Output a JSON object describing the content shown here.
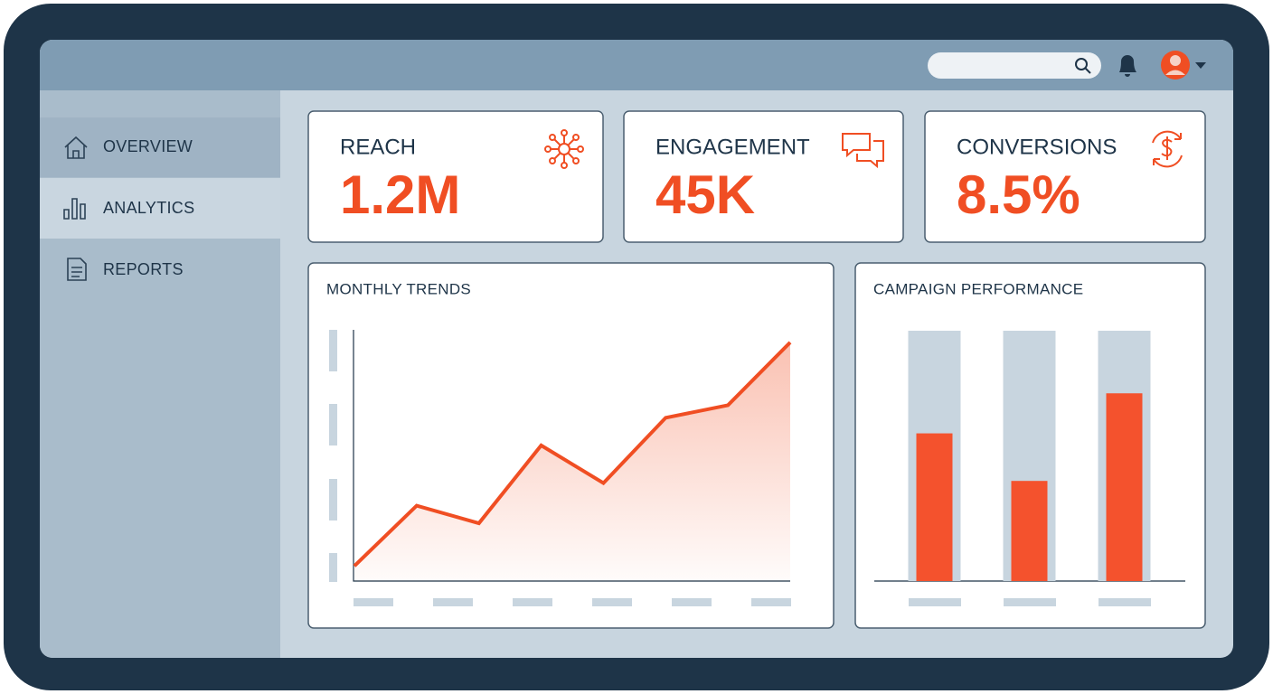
{
  "nav": [
    "OVERVIEW",
    "ANALYTICS",
    "REPORTS"
  ],
  "kpis": [
    {
      "label": "REACH",
      "value": "1.2M"
    },
    {
      "label": "ENGAGEMENT",
      "value": "45K"
    },
    {
      "label": "CONVERSIONS",
      "value": "8.5%"
    }
  ],
  "chart_data": [
    {
      "type": "line",
      "title": "MONTHLY TRENDS",
      "categories": [
        null,
        null,
        null,
        null,
        null,
        null,
        null,
        null
      ],
      "values": [
        6,
        30,
        23,
        54,
        39,
        65,
        70,
        95
      ],
      "color": "#f04e23",
      "ylim": [
        0,
        100
      ]
    },
    {
      "type": "bar",
      "title": "CAMPAIGN PERFORMANCE",
      "categories": [
        null,
        null,
        null
      ],
      "values": [
        59,
        40,
        75
      ],
      "color": "#f4522d",
      "ylim": [
        0,
        100
      ]
    }
  ]
}
